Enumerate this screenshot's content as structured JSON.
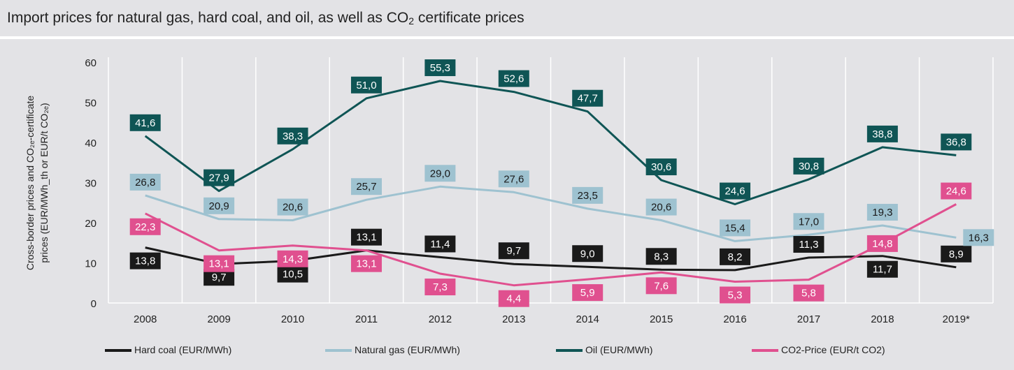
{
  "title": {
    "prefix": "Import prices for natural gas, hard coal, and oil, as well as CO",
    "sub": "2",
    "suffix": " certificate prices"
  },
  "chart_data": {
    "type": "line",
    "ylabel_line1": "Cross-border prices and CO₂ₑ-certificate",
    "ylabel_line2": "prices (EUR/MWh_th or EUR/t CO₂ₑ)",
    "ylim": [
      0,
      60
    ],
    "yticks": [
      "0",
      "10",
      "20",
      "30",
      "40",
      "50",
      "60"
    ],
    "categories": [
      "2008",
      "2009",
      "2010",
      "2011",
      "2012",
      "2013",
      "2014",
      "2015",
      "2016",
      "2017",
      "2018",
      "2019*"
    ],
    "grid": "vertical",
    "legend_position": "bottom",
    "series": [
      {
        "key": "coal",
        "name": "Hard coal (EUR/MWh)",
        "color": "#1a1a1a",
        "label_bg": "#1a1a1a",
        "label_fg": "#ffffff",
        "values": [
          13.8,
          9.7,
          10.5,
          13.1,
          11.4,
          9.7,
          9.0,
          8.3,
          8.2,
          11.3,
          11.7,
          8.9
        ],
        "labels": [
          "13,8",
          "9,7",
          "10,5",
          "13,1",
          "11,4",
          "9,7",
          "9,0",
          "8,3",
          "8,2",
          "11,3",
          "11,7",
          "8,9"
        ],
        "placement": [
          "below",
          "below",
          "below",
          "above",
          "above",
          "above",
          "above",
          "above",
          "above",
          "above",
          "below",
          "above"
        ]
      },
      {
        "key": "gas",
        "name": "Natural gas (EUR/MWh)",
        "color": "#9ec2d0",
        "label_bg": "#9ec2d0",
        "label_fg": "#1a1a1a",
        "values": [
          26.8,
          20.9,
          20.6,
          25.7,
          29.0,
          27.6,
          23.5,
          20.6,
          15.4,
          17.0,
          19.3,
          16.3
        ],
        "labels": [
          "26,8",
          "20,9",
          "20,6",
          "25,7",
          "29,0",
          "27,6",
          "23,5",
          "20,6",
          "15,4",
          "17,0",
          "19,3",
          "16,3"
        ],
        "placement": [
          "above",
          "above",
          "above",
          "above",
          "above",
          "above",
          "above",
          "above",
          "above",
          "above",
          "above",
          "right"
        ]
      },
      {
        "key": "oil",
        "name": "Oil (EUR/MWh)",
        "color": "#0f5555",
        "label_bg": "#0f5555",
        "label_fg": "#ffffff",
        "values": [
          41.6,
          27.9,
          38.3,
          51.0,
          55.3,
          52.6,
          47.7,
          30.6,
          24.6,
          30.8,
          38.8,
          36.8
        ],
        "labels": [
          "41,6",
          "27,9",
          "38,3",
          "51,0",
          "55,3",
          "52,6",
          "47,7",
          "30,6",
          "24,6",
          "30,8",
          "38,8",
          "36,8"
        ],
        "placement": [
          "above",
          "above",
          "above",
          "above",
          "above",
          "above",
          "above",
          "above",
          "above",
          "above",
          "above",
          "above"
        ]
      },
      {
        "key": "co2",
        "name": "CO2-Price (EUR/t CO2)",
        "color": "#e0508f",
        "label_bg": "#e0508f",
        "label_fg": "#ffffff",
        "values": [
          22.3,
          13.1,
          14.3,
          13.1,
          7.3,
          4.4,
          5.9,
          7.6,
          5.3,
          5.8,
          14.8,
          24.6
        ],
        "labels": [
          "22,3",
          "13,1",
          "14,3",
          "13,1",
          "7,3",
          "4,4",
          "5,9",
          "7,6",
          "5,3",
          "5,8",
          "14,8",
          "24,6"
        ],
        "placement": [
          "below",
          "below",
          "below",
          "below",
          "below",
          "below",
          "below",
          "below",
          "below",
          "below",
          "on",
          "above"
        ]
      }
    ]
  }
}
